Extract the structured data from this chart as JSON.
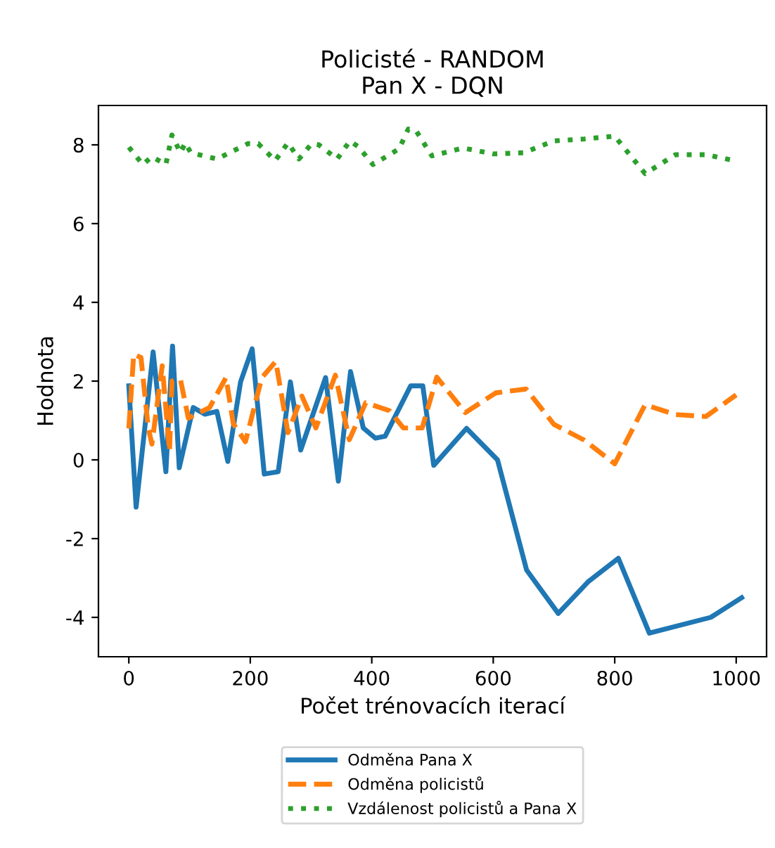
{
  "chart_data": {
    "type": "line",
    "title": "Policisté - RANDOM\nPan X - DQN",
    "xlabel": "Počet trénovacích iterací",
    "ylabel": "Hodnota",
    "xlim": [
      -50,
      1050
    ],
    "ylim": [
      -5,
      9
    ],
    "xticks": [
      0,
      200,
      400,
      600,
      800,
      1000
    ],
    "yticks": [
      -4,
      -2,
      0,
      2,
      4,
      6,
      8
    ],
    "grid": false,
    "legend": "bottom",
    "series": [
      {
        "name": "Odměna Pana X",
        "color": "#1f77b4",
        "line_style": "solid",
        "x": [
          0,
          12,
          40,
          61,
          72,
          83,
          106,
          125,
          145,
          163,
          184,
          203,
          223,
          246,
          266,
          283,
          324,
          345,
          365,
          386,
          406,
          422,
          464,
          484,
          502,
          556,
          607,
          655,
          707,
          756,
          806,
          857,
          958,
          1009
        ],
        "values": [
          1.88,
          -1.2,
          2.74,
          -0.3,
          2.89,
          -0.2,
          1.33,
          1.16,
          1.23,
          -0.04,
          1.98,
          2.82,
          -0.36,
          -0.3,
          1.98,
          0.25,
          2.09,
          -0.54,
          2.24,
          0.81,
          0.55,
          0.6,
          1.88,
          1.88,
          -0.14,
          0.8,
          0,
          -2.8,
          -3.9,
          -3.1,
          -2.5,
          -4.4,
          -4.0,
          -3.5
        ]
      },
      {
        "name": "Odměna policistů",
        "color": "#ff7f0e",
        "line_style": "dashed",
        "x": [
          0,
          8,
          20,
          32,
          38,
          55,
          67,
          71,
          85,
          98,
          133,
          160,
          172,
          192,
          219,
          242,
          262,
          285,
          308,
          340,
          363,
          390,
          429,
          452,
          483,
          507,
          554,
          604,
          654,
          700,
          750,
          800,
          850,
          900,
          950,
          1000
        ],
        "values": [
          0.8,
          2.68,
          2.6,
          0.81,
          0.4,
          2.39,
          0.22,
          2.0,
          2.04,
          1.06,
          1.33,
          2.09,
          0.92,
          0.46,
          2.09,
          2.5,
          0.69,
          1.62,
          0.81,
          2.15,
          0.51,
          1.45,
          1.25,
          0.81,
          0.81,
          2.1,
          1.2,
          1.7,
          1.8,
          0.9,
          0.5,
          -0.1,
          1.4,
          1.15,
          1.1,
          1.65
        ]
      },
      {
        "name": "Vzdálenost policistů a Pana X",
        "color": "#2ca02c",
        "line_style": "dotted",
        "x": [
          0,
          23,
          38,
          61,
          71,
          85,
          93,
          102,
          145,
          196,
          213,
          241,
          262,
          280,
          301,
          313,
          343,
          364,
          378,
          402,
          445,
          460,
          472,
          499,
          550,
          600,
          650,
          700,
          750,
          800,
          850,
          900,
          950,
          1000
        ],
        "values": [
          7.94,
          7.5,
          7.7,
          7.5,
          8.25,
          7.8,
          8.05,
          7.8,
          7.64,
          8.03,
          8.03,
          7.6,
          8.05,
          7.64,
          8.03,
          8.0,
          7.64,
          8.1,
          7.95,
          7.5,
          7.9,
          8.4,
          8.38,
          7.72,
          7.92,
          7.77,
          7.8,
          8.1,
          8.15,
          8.22,
          7.27,
          7.75,
          7.75,
          7.59
        ]
      }
    ]
  }
}
